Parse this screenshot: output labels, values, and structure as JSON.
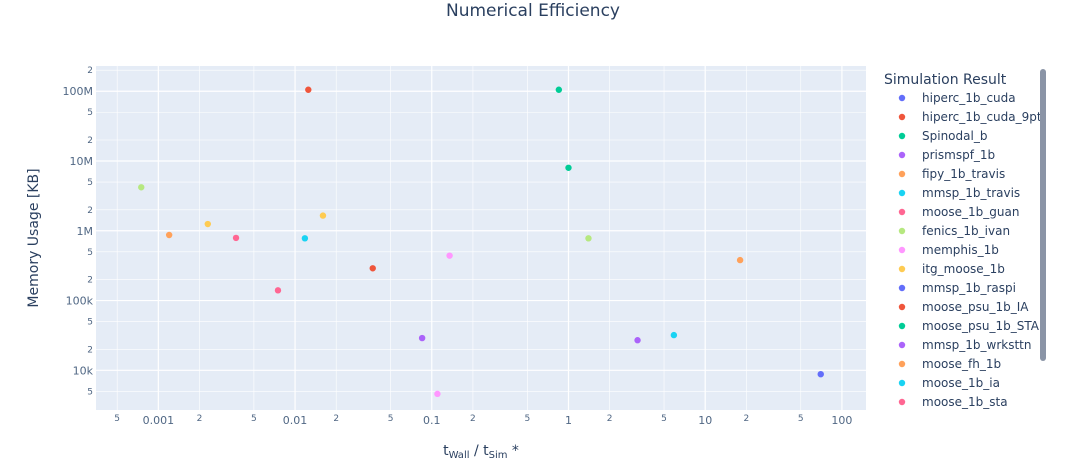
{
  "chart_data": {
    "type": "scatter",
    "title": "Numerical Efficiency",
    "xlabel": "t_Wall / t_Sim *",
    "xlabel_parts": {
      "t1": "t",
      "sub1": "Wall",
      "sep": " / t",
      "sub2": "Sim",
      "suffix": " *"
    },
    "ylabel": "Memory Usage [KB]",
    "x_scale": "log",
    "y_scale": "log",
    "xlim": [
      0.00035,
      150
    ],
    "ylim": [
      2700,
      230000000
    ],
    "grid": true,
    "legend_position": "right",
    "x_major_ticks": [
      {
        "value": 0.001,
        "label": "0.001"
      },
      {
        "value": 0.01,
        "label": "0.01"
      },
      {
        "value": 0.1,
        "label": "0.1"
      },
      {
        "value": 1,
        "label": "1"
      },
      {
        "value": 10,
        "label": "10"
      },
      {
        "value": 100,
        "label": "100"
      }
    ],
    "x_minor_ticks": [
      {
        "value": 0.0005,
        "label": "5"
      },
      {
        "value": 0.002,
        "label": "2"
      },
      {
        "value": 0.005,
        "label": "5"
      },
      {
        "value": 0.02,
        "label": "2"
      },
      {
        "value": 0.05,
        "label": "5"
      },
      {
        "value": 0.2,
        "label": "2"
      },
      {
        "value": 0.5,
        "label": "5"
      },
      {
        "value": 2,
        "label": "2"
      },
      {
        "value": 5,
        "label": "5"
      },
      {
        "value": 20,
        "label": "2"
      },
      {
        "value": 50,
        "label": "5"
      }
    ],
    "y_major_ticks": [
      {
        "value": 10000,
        "label": "10k"
      },
      {
        "value": 100000,
        "label": "100k"
      },
      {
        "value": 1000000,
        "label": "1M"
      },
      {
        "value": 10000000,
        "label": "10M"
      },
      {
        "value": 100000000,
        "label": "100M"
      }
    ],
    "y_minor_ticks": [
      {
        "value": 5000,
        "label": "5"
      },
      {
        "value": 20000,
        "label": "2"
      },
      {
        "value": 50000,
        "label": "5"
      },
      {
        "value": 200000,
        "label": "2"
      },
      {
        "value": 500000,
        "label": "5"
      },
      {
        "value": 2000000,
        "label": "2"
      },
      {
        "value": 5000000,
        "label": "5"
      },
      {
        "value": 20000000,
        "label": "2"
      },
      {
        "value": 50000000,
        "label": "5"
      },
      {
        "value": 200000000,
        "label": "2"
      }
    ],
    "legend_title": "Simulation Result",
    "series": [
      {
        "name": "hiperc_1b_cuda",
        "color": "#636efa",
        "points": [
          [
            70,
            8800
          ]
        ]
      },
      {
        "name": "hiperc_1b_cuda_9pt",
        "color": "#EF553B",
        "points": [
          [
            0.0125,
            105000000
          ]
        ]
      },
      {
        "name": "Spinodal_b",
        "color": "#00cc96",
        "points": [
          [
            0.85,
            105000000
          ],
          [
            1.0,
            8000000
          ]
        ]
      },
      {
        "name": "prismspf_1b",
        "color": "#ab63fa",
        "points": [
          [
            0.085,
            29000
          ],
          [
            3.2,
            27000
          ]
        ]
      },
      {
        "name": "fipy_1b_travis",
        "color": "#FFA15A",
        "points": [
          [
            0.0012,
            870000
          ],
          [
            18,
            380000
          ]
        ]
      },
      {
        "name": "mmsp_1b_travis",
        "color": "#19d3f3",
        "points": [
          [
            0.0118,
            780000
          ],
          [
            5.9,
            32000
          ]
        ]
      },
      {
        "name": "moose_1b_guan",
        "color": "#FF6692",
        "points": [
          [
            0.0075,
            140000
          ]
        ]
      },
      {
        "name": "fenics_1b_ivan",
        "color": "#B6E880",
        "points": [
          [
            0.00075,
            4200000
          ],
          [
            1.4,
            780000
          ]
        ]
      },
      {
        "name": "memphis_1b",
        "color": "#FF97FF",
        "points": [
          [
            0.135,
            440000
          ],
          [
            0.11,
            4600
          ]
        ]
      },
      {
        "name": "itg_moose_1b",
        "color": "#FECB52",
        "points": [
          [
            0.0023,
            1250000
          ],
          [
            0.016,
            1650000
          ]
        ]
      },
      {
        "name": "mmsp_1b_raspi",
        "color": "#636efa",
        "points": []
      },
      {
        "name": "moose_psu_1b_IA",
        "color": "#EF553B",
        "points": [
          [
            0.037,
            290000
          ]
        ]
      },
      {
        "name": "moose_psu_1b_STA",
        "color": "#00cc96",
        "points": []
      },
      {
        "name": "mmsp_1b_wrksttn",
        "color": "#ab63fa",
        "points": []
      },
      {
        "name": "moose_fh_1b",
        "color": "#FFA15A",
        "points": []
      },
      {
        "name": "moose_1b_ia",
        "color": "#19d3f3",
        "points": []
      },
      {
        "name": "moose_1b_sta",
        "color": "#FF6692",
        "points": [
          [
            0.0037,
            790000
          ]
        ]
      }
    ]
  }
}
